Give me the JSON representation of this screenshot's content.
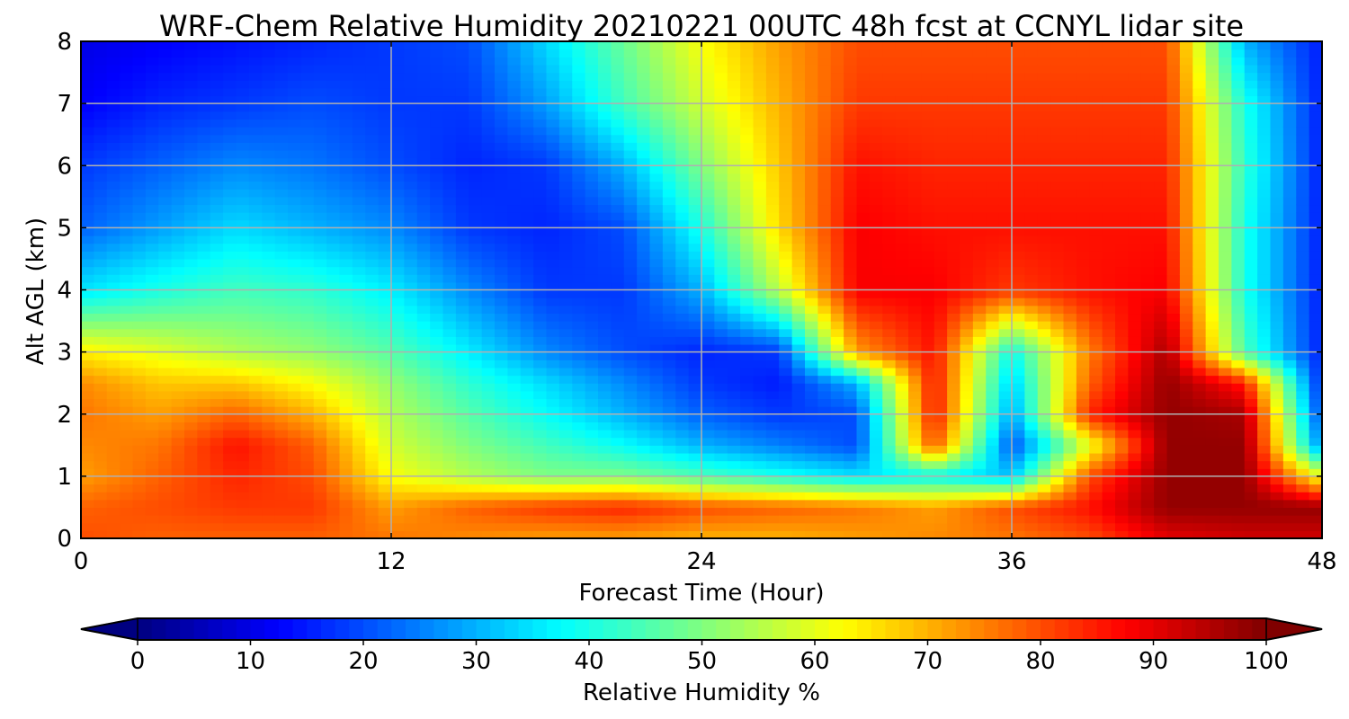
{
  "chart_data": {
    "type": "heatmap",
    "title": "WRF-Chem Relative Humidity 20210221 00UTC 48h fcst at CCNYL lidar site",
    "xlabel": "Forecast Time (Hour)",
    "ylabel": "Alt AGL (km)",
    "xlim": [
      0,
      48
    ],
    "ylim": [
      0,
      8
    ],
    "x_ticks": [
      0,
      12,
      24,
      36,
      48
    ],
    "y_ticks": [
      0,
      1,
      2,
      3,
      4,
      5,
      6,
      7,
      8
    ],
    "grid": true,
    "colormap": "jet",
    "colorbar": {
      "label": "Relative Humidity %",
      "min": 0,
      "max": 100,
      "ticks": [
        0,
        10,
        20,
        30,
        40,
        50,
        60,
        70,
        80,
        90,
        100
      ],
      "extend": "both",
      "orientation": "horizontal",
      "placement": "bottom"
    },
    "x": [
      0,
      3,
      6,
      9,
      12,
      15,
      18,
      21,
      24,
      27,
      30,
      33,
      36,
      39,
      42,
      45,
      48
    ],
    "y": [
      0,
      0.5,
      1,
      1.5,
      2,
      2.5,
      3,
      4,
      5,
      6,
      7,
      8
    ],
    "values": [
      [
        80,
        78,
        78,
        78,
        76,
        74,
        72,
        72,
        70,
        70,
        72,
        74,
        76,
        80,
        90,
        92,
        92
      ],
      [
        78,
        80,
        82,
        82,
        72,
        78,
        82,
        84,
        80,
        78,
        76,
        72,
        80,
        86,
        98,
        98,
        98
      ],
      [
        72,
        78,
        84,
        80,
        62,
        55,
        50,
        50,
        45,
        40,
        35,
        38,
        32,
        80,
        98,
        98,
        60
      ],
      [
        74,
        76,
        86,
        78,
        58,
        50,
        44,
        38,
        30,
        25,
        20,
        80,
        20,
        60,
        98,
        98,
        25
      ],
      [
        76,
        72,
        78,
        70,
        55,
        46,
        38,
        30,
        22,
        18,
        20,
        86,
        28,
        84,
        98,
        96,
        18
      ],
      [
        74,
        68,
        68,
        62,
        52,
        42,
        34,
        26,
        18,
        15,
        30,
        86,
        32,
        78,
        98,
        85,
        15
      ],
      [
        64,
        60,
        55,
        52,
        46,
        36,
        26,
        20,
        16,
        18,
        72,
        86,
        38,
        75,
        96,
        45,
        15
      ],
      [
        35,
        40,
        44,
        42,
        36,
        26,
        18,
        18,
        30,
        56,
        88,
        88,
        82,
        86,
        88,
        40,
        15
      ],
      [
        22,
        28,
        34,
        30,
        26,
        18,
        16,
        20,
        40,
        66,
        88,
        86,
        86,
        86,
        86,
        40,
        15
      ],
      [
        18,
        22,
        26,
        24,
        20,
        16,
        18,
        30,
        50,
        68,
        86,
        84,
        84,
        84,
        84,
        42,
        15
      ],
      [
        12,
        16,
        18,
        20,
        18,
        18,
        28,
        44,
        58,
        70,
        82,
        82,
        82,
        82,
        82,
        40,
        15
      ],
      [
        10,
        12,
        14,
        16,
        18,
        20,
        34,
        48,
        62,
        72,
        80,
        80,
        80,
        80,
        80,
        30,
        15
      ]
    ]
  }
}
